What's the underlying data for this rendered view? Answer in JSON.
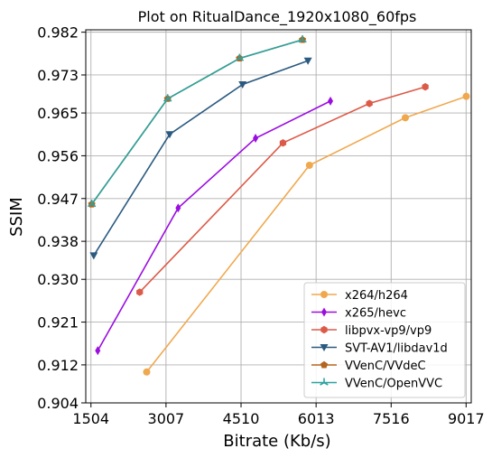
{
  "chart_data": {
    "type": "line",
    "title": "Plot on RitualDance_1920x1080_60fps",
    "xlabel": "Bitrate (Kb/s)",
    "ylabel": "SSIM",
    "xlim": [
      1400,
      9120
    ],
    "ylim": [
      0.904,
      0.9825
    ],
    "xticks": [
      1504,
      3007,
      4510,
      6013,
      7516,
      9017
    ],
    "xtick_labels": [
      "1504",
      "3007",
      "4510",
      "6013",
      "7516",
      "9017"
    ],
    "yticks": [
      0.904,
      0.912,
      0.921,
      0.93,
      0.938,
      0.947,
      0.956,
      0.965,
      0.973,
      0.982
    ],
    "ytick_labels": [
      "0.904",
      "0.912",
      "0.921",
      "0.930",
      "0.938",
      "0.947",
      "0.956",
      "0.965",
      "0.973",
      "0.982"
    ],
    "grid": true,
    "legend_position": "bottom-right",
    "series": [
      {
        "name": "x264/h264",
        "color": "#f0a84e",
        "marker": "circle",
        "points": [
          [
            2620,
            0.9105
          ],
          [
            5880,
            0.954
          ],
          [
            7800,
            0.964
          ],
          [
            9020,
            0.9685
          ]
        ]
      },
      {
        "name": "x265/hevc",
        "color": "#9b0ee0",
        "marker": "thin-diamond",
        "points": [
          [
            1640,
            0.915
          ],
          [
            3250,
            0.945
          ],
          [
            4800,
            0.9597
          ],
          [
            6300,
            0.9675
          ]
        ]
      },
      {
        "name": "libpvx-vp9/vp9",
        "color": "#dc5a48",
        "marker": "hexagon",
        "points": [
          [
            2480,
            0.9273
          ],
          [
            5350,
            0.9587
          ],
          [
            7080,
            0.967
          ],
          [
            8200,
            0.9705
          ]
        ]
      },
      {
        "name": "SVT-AV1/libdav1d",
        "color": "#2a5a80",
        "marker": "triangle-down",
        "points": [
          [
            1560,
            0.935
          ],
          [
            3080,
            0.9605
          ],
          [
            4540,
            0.971
          ],
          [
            5850,
            0.976
          ]
        ]
      },
      {
        "name": "VVenC/VVdeC",
        "color": "#b5651d",
        "marker": "pentagon",
        "points": [
          [
            1520,
            0.9458
          ],
          [
            3040,
            0.968
          ],
          [
            4480,
            0.9765
          ],
          [
            5740,
            0.9804
          ]
        ]
      },
      {
        "name": "VVenC/OpenVVC",
        "color": "#2aa3a0",
        "marker": "tri-star",
        "points": [
          [
            1520,
            0.9458
          ],
          [
            3040,
            0.968
          ],
          [
            4480,
            0.9765
          ],
          [
            5740,
            0.9804
          ]
        ]
      }
    ]
  }
}
